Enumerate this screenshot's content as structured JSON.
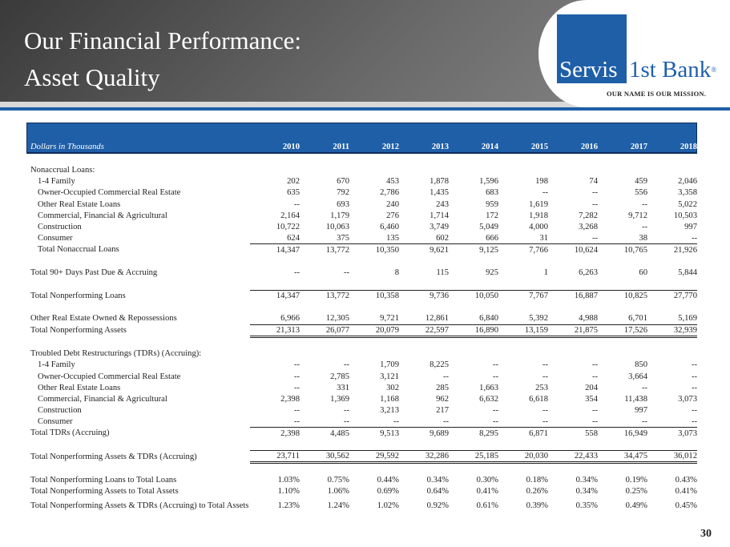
{
  "header": {
    "title_line1": "Our Financial Performance:",
    "title_line2": "Asset Quality"
  },
  "logo": {
    "servis": "Servis",
    "bank": "1st Bank",
    "reg": "®",
    "tagline": "OUR NAME IS OUR MISSION."
  },
  "table": {
    "header_label": "Dollars in Thousands",
    "years": [
      "2010",
      "2011",
      "2012",
      "2013",
      "2014",
      "2015",
      "2016",
      "2017",
      "2018"
    ],
    "rows": [
      {
        "type": "sp"
      },
      {
        "type": "section",
        "label": "Nonaccrual Loans:"
      },
      {
        "type": "sub",
        "label": "1-4 Family",
        "values": [
          "202",
          "670",
          "453",
          "1,878",
          "1,596",
          "198",
          "74",
          "459",
          "2,046"
        ]
      },
      {
        "type": "sub",
        "label": "Owner-Occupied Commercial Real Estate",
        "values": [
          "635",
          "792",
          "2,786",
          "1,435",
          "683",
          "--",
          "--",
          "556",
          "3,358"
        ]
      },
      {
        "type": "sub",
        "label": "Other Real Estate Loans",
        "values": [
          "--",
          "693",
          "240",
          "243",
          "959",
          "1,619",
          "--",
          "--",
          "5,022"
        ]
      },
      {
        "type": "sub",
        "label": "Commercial, Financial & Agricultural",
        "values": [
          "2,164",
          "1,179",
          "276",
          "1,714",
          "172",
          "1,918",
          "7,282",
          "9,712",
          "10,503"
        ]
      },
      {
        "type": "sub",
        "label": "Construction",
        "values": [
          "10,722",
          "10,063",
          "6,460",
          "3,749",
          "5,049",
          "4,000",
          "3,268",
          "--",
          "997"
        ]
      },
      {
        "type": "sub",
        "label": "Consumer",
        "values": [
          "624",
          "375",
          "135",
          "602",
          "666",
          "31",
          "--",
          "38",
          "--"
        ]
      },
      {
        "type": "sub tot",
        "label": "Total Nonaccrual Loans",
        "values": [
          "14,347",
          "13,772",
          "10,350",
          "9,621",
          "9,125",
          "7,766",
          "10,624",
          "10,765",
          "21,926"
        ]
      },
      {
        "type": "sp"
      },
      {
        "type": "row",
        "label": "Total 90+ Days Past Due & Accruing",
        "values": [
          "--",
          "--",
          "8",
          "115",
          "925",
          "1",
          "6,263",
          "60",
          "5,844"
        ]
      },
      {
        "type": "sp"
      },
      {
        "type": "row tot",
        "label": "Total Nonperforming Loans",
        "values": [
          "14,347",
          "13,772",
          "10,358",
          "9,736",
          "10,050",
          "7,767",
          "16,887",
          "10,825",
          "27,770"
        ]
      },
      {
        "type": "sp"
      },
      {
        "type": "row",
        "label": "Other Real Estate Owned & Repossessions",
        "values": [
          "6,966",
          "12,305",
          "9,721",
          "12,861",
          "6,840",
          "5,392",
          "4,988",
          "6,701",
          "5,169"
        ]
      },
      {
        "type": "row tot dbl",
        "label": "Total Nonperforming Assets",
        "values": [
          "21,313",
          "26,077",
          "20,079",
          "22,597",
          "16,890",
          "13,159",
          "21,875",
          "17,526",
          "32,939"
        ]
      },
      {
        "type": "sp"
      },
      {
        "type": "section",
        "label": "Troubled Debt Restructurings (TDRs) (Accruing):"
      },
      {
        "type": "sub",
        "label": "1-4 Family",
        "values": [
          "--",
          "--",
          "1,709",
          "8,225",
          "--",
          "--",
          "--",
          "850",
          "--"
        ]
      },
      {
        "type": "sub",
        "label": "Owner-Occupied Commercial Real Estate",
        "values": [
          "--",
          "2,785",
          "3,121",
          "--",
          "--",
          "--",
          "--",
          "3,664",
          "--"
        ]
      },
      {
        "type": "sub",
        "label": "Other Real Estate Loans",
        "values": [
          "--",
          "331",
          "302",
          "285",
          "1,663",
          "253",
          "204",
          "--",
          "--"
        ]
      },
      {
        "type": "sub",
        "label": "Commercial, Financial & Agricultural",
        "values": [
          "2,398",
          "1,369",
          "1,168",
          "962",
          "6,632",
          "6,618",
          "354",
          "11,438",
          "3,073"
        ]
      },
      {
        "type": "sub",
        "label": "Construction",
        "values": [
          "--",
          "--",
          "3,213",
          "217",
          "--",
          "--",
          "--",
          "997",
          "--"
        ]
      },
      {
        "type": "sub",
        "label": "Consumer",
        "values": [
          "--",
          "--",
          "--",
          "--",
          "--",
          "--",
          "--",
          "--",
          "--"
        ]
      },
      {
        "type": "row tot",
        "label": "Total TDRs (Accruing)",
        "values": [
          "2,398",
          "4,485",
          "9,513",
          "9,689",
          "8,295",
          "6,871",
          "558",
          "16,949",
          "3,073"
        ]
      },
      {
        "type": "sp"
      },
      {
        "type": "row tot dbl",
        "label": "Total Nonperforming Assets & TDRs (Accruing)",
        "values": [
          "23,711",
          "30,562",
          "29,592",
          "32,286",
          "25,185",
          "20,030",
          "22,433",
          "34,475",
          "36,012"
        ]
      },
      {
        "type": "sp"
      },
      {
        "type": "row",
        "label": "Total Nonperforming Loans to Total Loans",
        "values": [
          "1.03%",
          "0.75%",
          "0.44%",
          "0.34%",
          "0.30%",
          "0.18%",
          "0.34%",
          "0.19%",
          "0.43%"
        ]
      },
      {
        "type": "row",
        "label": "Total Nonperforming Assets to Total Assets",
        "values": [
          "1.10%",
          "1.06%",
          "0.69%",
          "0.64%",
          "0.41%",
          "0.26%",
          "0.34%",
          "0.25%",
          "0.41%"
        ]
      },
      {
        "type": "row tall",
        "label": "Total Nonperforming Assets & TDRs (Accruing) to Total Assets",
        "values": [
          "1.23%",
          "1.24%",
          "1.02%",
          "0.92%",
          "0.61%",
          "0.39%",
          "0.35%",
          "0.49%",
          "0.45%"
        ]
      }
    ]
  },
  "page_number": "30"
}
